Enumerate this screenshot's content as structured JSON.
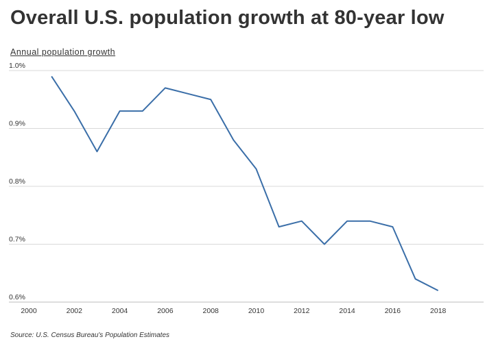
{
  "chart_data": {
    "type": "line",
    "title": "Overall U.S. population growth at 80-year low",
    "ylabel": "Annual population growth",
    "xlabel": "",
    "source": "Source: U.S. Census Bureau's Population Estimates",
    "x": [
      2001,
      2002,
      2003,
      2004,
      2005,
      2006,
      2007,
      2008,
      2009,
      2010,
      2011,
      2012,
      2013,
      2014,
      2015,
      2016,
      2017,
      2018
    ],
    "series": [
      {
        "values": [
          0.99,
          0.93,
          0.86,
          0.93,
          0.93,
          0.97,
          0.96,
          0.95,
          0.88,
          0.83,
          0.73,
          0.74,
          0.7,
          0.74,
          0.74,
          0.73,
          0.64,
          0.62
        ]
      }
    ],
    "xlim": [
      2000,
      2020
    ],
    "ylim": [
      0.6,
      1.0
    ],
    "xticks": [
      "2000",
      "2002",
      "2004",
      "2006",
      "2008",
      "2010",
      "2012",
      "2014",
      "2016",
      "2018"
    ],
    "yticks": [
      "0.6%",
      "0.7%",
      "0.8%",
      "0.9%",
      "1.0%"
    ],
    "grid": "horizontal",
    "line_color": "#3a6ea8"
  }
}
